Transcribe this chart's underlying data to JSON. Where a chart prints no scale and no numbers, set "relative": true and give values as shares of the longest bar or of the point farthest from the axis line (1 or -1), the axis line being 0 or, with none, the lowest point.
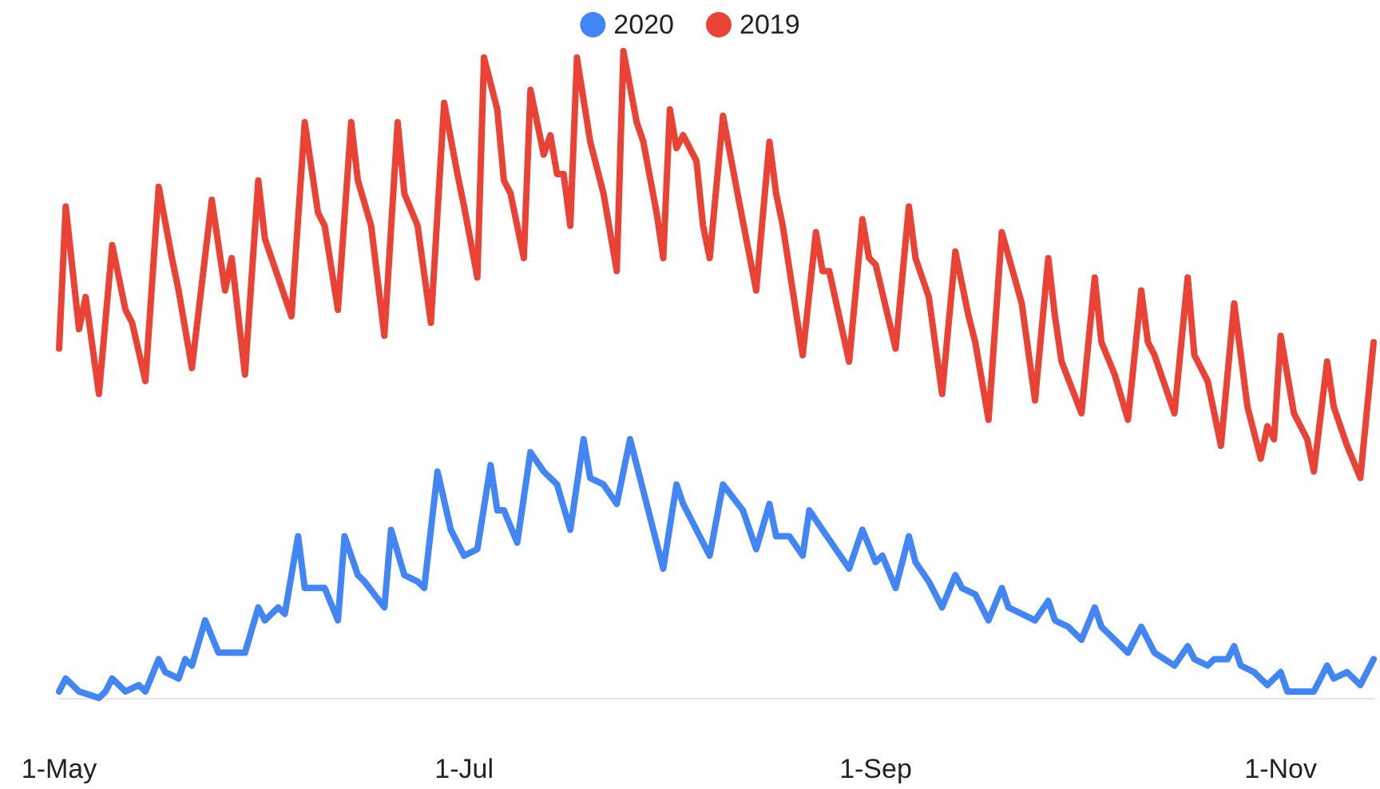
{
  "chart_data": {
    "type": "line",
    "relative": true,
    "legend": "top",
    "grid": false,
    "tick_labels": "x",
    "marker": "none",
    "line_style": "solid",
    "xlim": [
      "--05-01",
      "--11-15"
    ],
    "xticks": [
      {
        "value": "--05-01",
        "label": "1-May"
      },
      {
        "value": "--07-01",
        "label": "1-Jul"
      },
      {
        "value": "--09-01",
        "label": "1-Sep"
      },
      {
        "value": "--11-01",
        "label": "1-Nov"
      }
    ],
    "series": [
      {
        "name": "2020",
        "color": "#4285f4",
        "x": [
          "--05-01",
          "--05-02",
          "--05-04",
          "--05-07",
          "--05-08",
          "--05-09",
          "--05-11",
          "--05-13",
          "--05-14",
          "--05-16",
          "--05-17",
          "--05-19",
          "--05-20",
          "--05-21",
          "--05-23",
          "--05-25",
          "--05-27",
          "--05-29",
          "--05-31",
          "--06-01",
          "--06-03",
          "--06-04",
          "--06-06",
          "--06-07",
          "--06-10",
          "--06-12",
          "--06-13",
          "--06-15",
          "--06-16",
          "--06-19",
          "--06-20",
          "--06-22",
          "--06-24",
          "--06-25",
          "--06-27",
          "--06-29",
          "--07-01",
          "--07-03",
          "--07-05",
          "--07-06",
          "--07-07",
          "--07-09",
          "--07-11",
          "--07-13",
          "--07-15",
          "--07-17",
          "--07-19",
          "--07-20",
          "--07-22",
          "--07-24",
          "--07-26",
          "--07-31",
          "--08-02",
          "--08-03",
          "--08-07",
          "--08-09",
          "--08-12",
          "--08-14",
          "--08-16",
          "--08-17",
          "--08-19",
          "--08-21",
          "--08-22",
          "--08-24",
          "--08-26",
          "--08-28",
          "--08-30",
          "--09-01",
          "--09-02",
          "--09-04",
          "--09-06",
          "--09-07",
          "--09-09",
          "--09-11",
          "--09-13",
          "--09-14",
          "--09-16",
          "--09-18",
          "--09-20",
          "--09-21",
          "--09-23",
          "--09-25",
          "--09-27",
          "--09-28",
          "--09-30",
          "--10-02",
          "--10-04",
          "--10-05",
          "--10-09",
          "--10-11",
          "--10-13",
          "--10-16",
          "--10-18",
          "--10-19",
          "--10-21",
          "--10-22",
          "--10-24",
          "--10-25",
          "--10-26",
          "--10-28",
          "--10-30",
          "--11-01",
          "--11-02",
          "--11-06",
          "--11-08",
          "--11-09",
          "--11-11",
          "--11-13",
          "--11-15"
        ],
        "values": [
          0.01,
          0.03,
          0.01,
          0,
          0.01,
          0.03,
          0.01,
          0.02,
          0.01,
          0.06,
          0.04,
          0.03,
          0.06,
          0.05,
          0.12,
          0.07,
          0.07,
          0.07,
          0.14,
          0.12,
          0.14,
          0.13,
          0.25,
          0.17,
          0.17,
          0.12,
          0.25,
          0.19,
          0.18,
          0.14,
          0.26,
          0.19,
          0.18,
          0.17,
          0.35,
          0.26,
          0.22,
          0.23,
          0.36,
          0.29,
          0.29,
          0.24,
          0.38,
          0.35,
          0.33,
          0.26,
          0.4,
          0.34,
          0.33,
          0.3,
          0.4,
          0.2,
          0.33,
          0.3,
          0.22,
          0.33,
          0.29,
          0.23,
          0.3,
          0.25,
          0.25,
          0.22,
          0.29,
          0.26,
          0.23,
          0.2,
          0.26,
          0.21,
          0.22,
          0.17,
          0.25,
          0.21,
          0.18,
          0.14,
          0.19,
          0.17,
          0.16,
          0.12,
          0.17,
          0.14,
          0.13,
          0.12,
          0.15,
          0.12,
          0.11,
          0.09,
          0.14,
          0.11,
          0.07,
          0.11,
          0.07,
          0.05,
          0.08,
          0.06,
          0.05,
          0.06,
          0.06,
          0.08,
          0.05,
          0.04,
          0.02,
          0.04,
          0.01,
          0.01,
          0.05,
          0.03,
          0.04,
          0.02,
          0.06
        ]
      },
      {
        "name": "2019",
        "color": "#ea4335",
        "x": [
          "--05-01",
          "--05-02",
          "--05-04",
          "--05-05",
          "--05-07",
          "--05-09",
          "--05-11",
          "--05-12",
          "--05-14",
          "--05-16",
          "--05-18",
          "--05-19",
          "--05-21",
          "--05-24",
          "--05-26",
          "--05-27",
          "--05-29",
          "--05-31",
          "--06-01",
          "--06-03",
          "--06-05",
          "--06-07",
          "--06-09",
          "--06-10",
          "--06-12",
          "--06-14",
          "--06-15",
          "--06-17",
          "--06-19",
          "--06-21",
          "--06-22",
          "--06-24",
          "--06-26",
          "--06-28",
          "--06-30",
          "--07-01",
          "--07-03",
          "--07-04",
          "--07-06",
          "--07-07",
          "--07-08",
          "--07-10",
          "--07-11",
          "--07-13",
          "--07-14",
          "--07-15",
          "--07-16",
          "--07-17",
          "--07-18",
          "--07-20",
          "--07-22",
          "--07-24",
          "--07-25",
          "--07-27",
          "--07-28",
          "--07-30",
          "--07-31",
          "--08-01",
          "--08-02",
          "--08-03",
          "--08-05",
          "--08-06",
          "--08-07",
          "--08-09",
          "--08-11",
          "--08-14",
          "--08-16",
          "--08-17",
          "--08-18",
          "--08-21",
          "--08-23",
          "--08-24",
          "--08-25",
          "--08-28",
          "--08-30",
          "--08-31",
          "--09-01",
          "--09-04",
          "--09-06",
          "--09-07",
          "--09-09",
          "--09-11",
          "--09-13",
          "--09-15",
          "--09-16",
          "--09-18",
          "--09-20",
          "--09-23",
          "--09-25",
          "--09-27",
          "--09-28",
          "--09-29",
          "--10-02",
          "--10-04",
          "--10-05",
          "--10-07",
          "--10-09",
          "--10-11",
          "--10-12",
          "--10-13",
          "--10-16",
          "--10-18",
          "--10-19",
          "--10-21",
          "--10-23",
          "--10-25",
          "--10-27",
          "--10-29",
          "--10-30",
          "--10-31",
          "--11-01",
          "--11-03",
          "--11-05",
          "--11-06",
          "--11-08",
          "--11-09",
          "--11-11",
          "--11-13",
          "--11-15"
        ],
        "values": [
          0.54,
          0.76,
          0.57,
          0.62,
          0.47,
          0.7,
          0.6,
          0.58,
          0.49,
          0.79,
          0.68,
          0.63,
          0.51,
          0.77,
          0.63,
          0.68,
          0.5,
          0.8,
          0.71,
          0.65,
          0.59,
          0.89,
          0.75,
          0.73,
          0.6,
          0.89,
          0.8,
          0.73,
          0.56,
          0.89,
          0.78,
          0.73,
          0.58,
          0.92,
          0.81,
          0.76,
          0.65,
          0.99,
          0.91,
          0.8,
          0.78,
          0.68,
          0.94,
          0.84,
          0.87,
          0.81,
          0.81,
          0.73,
          0.99,
          0.86,
          0.78,
          0.66,
          1,
          0.89,
          0.86,
          0.75,
          0.68,
          0.91,
          0.85,
          0.87,
          0.83,
          0.73,
          0.68,
          0.9,
          0.79,
          0.63,
          0.86,
          0.78,
          0.73,
          0.53,
          0.72,
          0.66,
          0.66,
          0.52,
          0.74,
          0.68,
          0.67,
          0.54,
          0.76,
          0.68,
          0.62,
          0.47,
          0.69,
          0.59,
          0.55,
          0.43,
          0.72,
          0.61,
          0.46,
          0.68,
          0.59,
          0.52,
          0.44,
          0.65,
          0.55,
          0.5,
          0.43,
          0.63,
          0.55,
          0.53,
          0.44,
          0.65,
          0.53,
          0.49,
          0.39,
          0.61,
          0.45,
          0.37,
          0.42,
          0.4,
          0.56,
          0.44,
          0.4,
          0.35,
          0.52,
          0.45,
          0.39,
          0.34,
          0.55
        ]
      }
    ]
  }
}
